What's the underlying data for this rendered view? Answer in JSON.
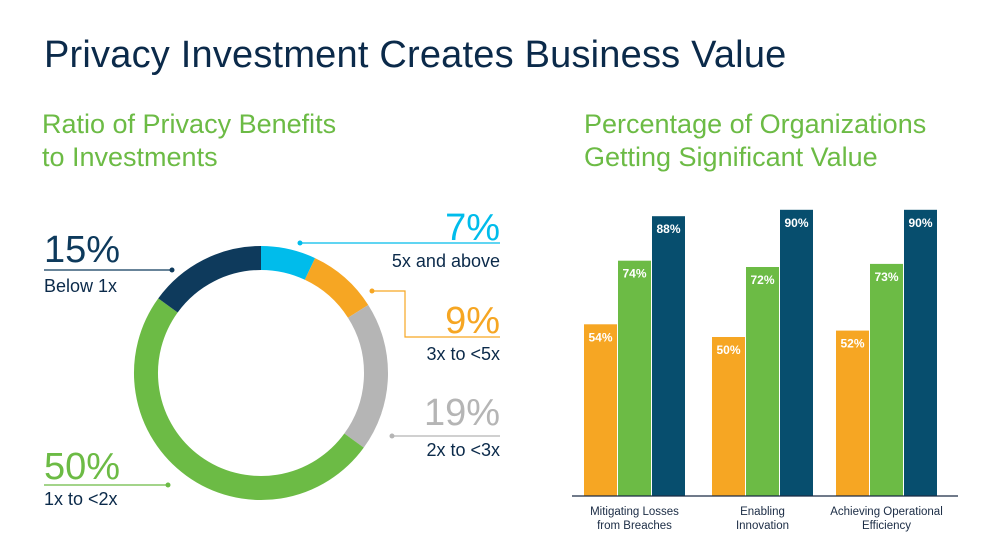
{
  "title": "Privacy Investment Creates Business Value",
  "donut_subtitle": [
    "Ratio of Privacy Benefits",
    "to Investments"
  ],
  "bar_subtitle": [
    "Percentage of Organizations",
    "Getting Significant Value"
  ],
  "colors": {
    "title": "#0b2a4a",
    "subtitle": "#6cbb45",
    "light_blue": "#00bceb",
    "orange": "#f6a623",
    "gray": "#b5b5b5",
    "green": "#6cbb45",
    "navy": "#074e6e",
    "dark_navy": "#0e3a5c"
  },
  "chart_data": [
    {
      "type": "pie",
      "title": "Ratio of Privacy Benefits to Investments",
      "donut": true,
      "slices": [
        {
          "label": "5x and above",
          "percent_label": "7%",
          "value": 7,
          "color": "#00bceb"
        },
        {
          "label": "3x to <5x",
          "percent_label": "9%",
          "value": 9,
          "color": "#f6a623"
        },
        {
          "label": "2x to <3x",
          "percent_label": "19%",
          "value": 19,
          "color": "#b5b5b5"
        },
        {
          "label": "1x to <2x",
          "percent_label": "50%",
          "value": 50,
          "color": "#6cbb45"
        },
        {
          "label": "Below 1x",
          "percent_label": "15%",
          "value": 15,
          "color": "#0e3a5c"
        }
      ]
    },
    {
      "type": "bar",
      "title": "Percentage of Organizations Getting Significant Value",
      "categories": [
        [
          "Mitigating Losses",
          "from Breaches"
        ],
        [
          "Enabling",
          "Innovation"
        ],
        [
          "Achieving Operational",
          "Efficiency"
        ]
      ],
      "ylim": [
        0,
        100
      ],
      "series": [
        {
          "values": [
            54,
            50,
            52
          ],
          "labels": [
            "54%",
            "50%",
            "52%"
          ],
          "color": "#f6a623"
        },
        {
          "values": [
            74,
            72,
            73
          ],
          "labels": [
            "74%",
            "72%",
            "73%"
          ],
          "color": "#6cbb45"
        },
        {
          "values": [
            88,
            90,
            90
          ],
          "labels": [
            "88%",
            "90%",
            "90%"
          ],
          "color": "#074e6e"
        }
      ]
    }
  ]
}
